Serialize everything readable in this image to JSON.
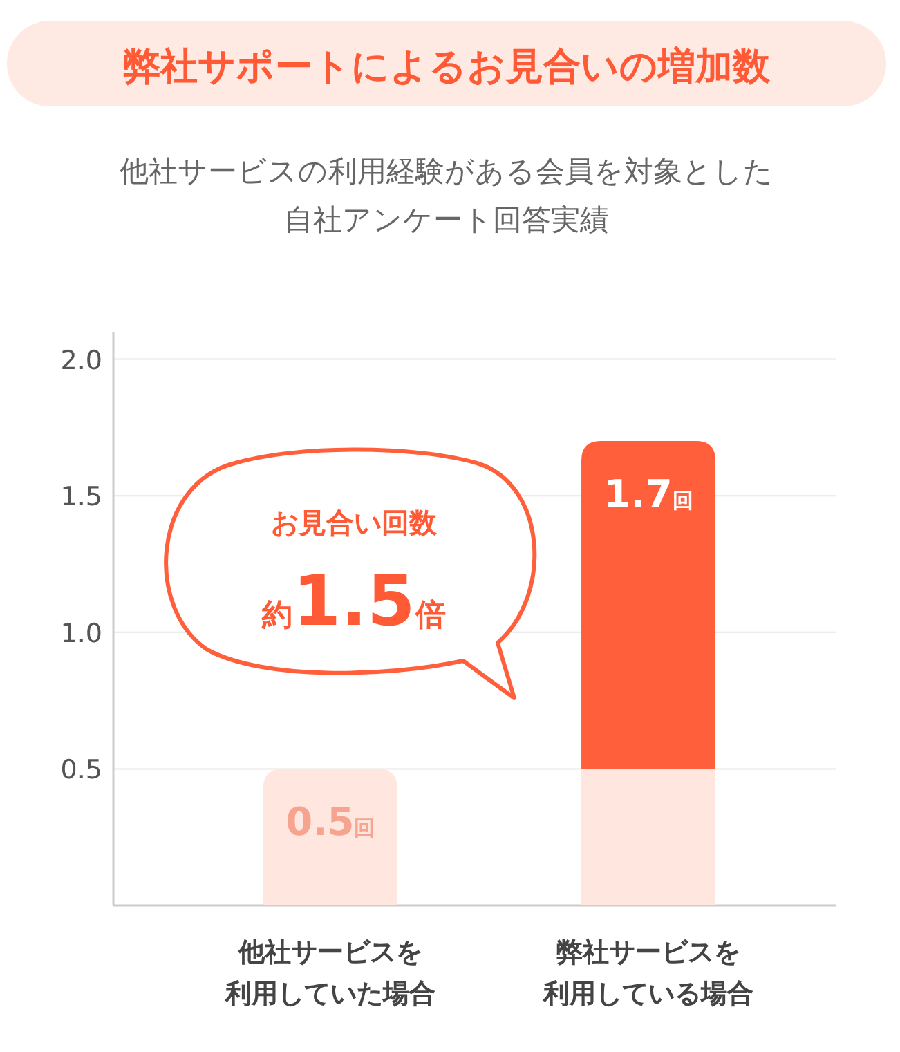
{
  "chart_data": {
    "type": "bar",
    "title": "弊社サポートによるお見合いの増加数",
    "subtitle": "他社サービスの利用経験がある会員を対象とした自社アンケート回答実績",
    "categories": [
      "他社サービスを利用していた場合",
      "弊社サービスを利用している場合"
    ],
    "stacked": true,
    "series": [
      {
        "color": "#ffe6df",
        "values": [
          0.5,
          0.5
        ]
      },
      {
        "color": "#ff5f3b",
        "values": [
          null,
          1.2
        ]
      }
    ],
    "annotations": [
      {
        "text": "0.5回",
        "x": "他社サービスを利用していた場合",
        "y": 0.5
      },
      {
        "text": "1.7回",
        "x": "弊社サービスを利用している場合",
        "y": 1.7
      },
      "お見合い回数",
      "約1.5倍"
    ],
    "ylim": [
      0,
      2.1
    ],
    "yticks": [
      {
        "value": 0.5,
        "label": "0.5"
      },
      {
        "value": 1,
        "label": "1.0"
      },
      {
        "value": 1.5,
        "label": "1.5"
      },
      {
        "value": 2,
        "label": "2.0"
      }
    ],
    "grid": "y"
  }
}
